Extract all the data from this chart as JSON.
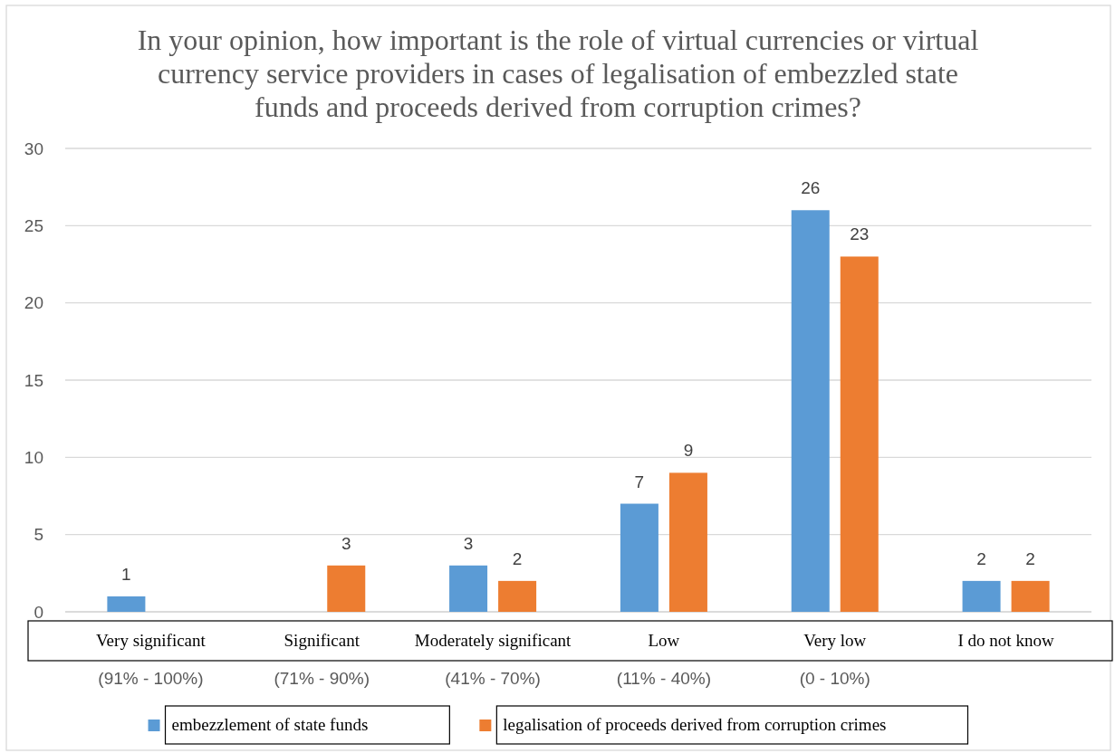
{
  "chart_data": {
    "type": "bar",
    "title": "In your opinion, how important is the role of virtual currencies or virtual currency service providers in cases of legalisation of embezzled state funds and proceeds derived from corruption crimes?",
    "categories": [
      "Very significant\n(91% - 100%)",
      "Significant\n(71% - 90%)",
      "Moderately significant\n(41% - 70%)",
      "Low\n(11% - 40%)",
      "Very low\n(0 - 10%)",
      "I do not know"
    ],
    "series": [
      {
        "name": "embezzlement of state funds",
        "color": "#5b9bd5",
        "values": [
          1,
          null,
          3,
          7,
          26,
          2
        ]
      },
      {
        "name": "legalisation of proceeds derived from corruption crimes",
        "color": "#ed7d31",
        "values": [
          null,
          3,
          2,
          9,
          23,
          2
        ]
      }
    ],
    "ylim": [
      0,
      30
    ],
    "yticks": [
      0,
      5,
      10,
      15,
      20,
      25,
      30
    ],
    "grid": "y",
    "legend": "bottom",
    "data_labels": true
  }
}
